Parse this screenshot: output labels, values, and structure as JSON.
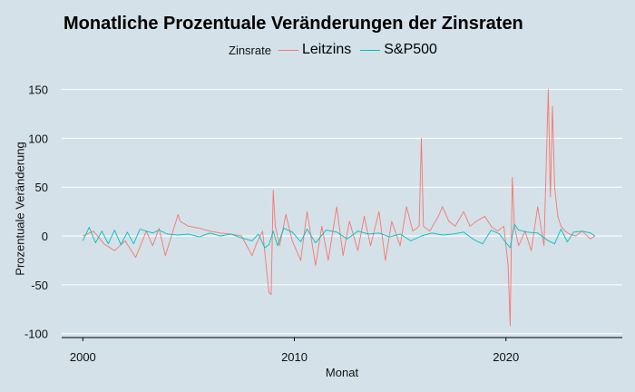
{
  "chart_data": {
    "type": "line",
    "title": "Monatliche Prozentuale Veränderungen der Zinsraten",
    "xlabel": "Monat",
    "ylabel": "Prozentuale Veränderung",
    "legend_title": "Zinsrate",
    "legend_position": "top",
    "xlim": [
      1999.0,
      2025.5
    ],
    "ylim": [
      -104,
      158
    ],
    "x_ticks": [
      2000,
      2010,
      2020
    ],
    "y_ticks": [
      150,
      100,
      50,
      0,
      -50,
      -100
    ],
    "grid": "horizontal",
    "series": [
      {
        "name": "Leitzins",
        "color": "#f8766d",
        "x": [
          2000.0,
          2000.5,
          2001.0,
          2001.5,
          2002.0,
          2002.5,
          2003.0,
          2003.3,
          2003.6,
          2003.9,
          2004.5,
          2004.6,
          2005.0,
          2005.5,
          2006.0,
          2006.5,
          2007.0,
          2007.5,
          2008.0,
          2008.2,
          2008.5,
          2008.8,
          2008.9,
          2009.0,
          2009.1,
          2009.3,
          2009.6,
          2009.9,
          2010.3,
          2010.6,
          2011.0,
          2011.3,
          2011.6,
          2012.0,
          2012.3,
          2012.6,
          2013.0,
          2013.3,
          2013.6,
          2014.0,
          2014.3,
          2014.6,
          2015.0,
          2015.3,
          2015.6,
          2015.9,
          2016.0,
          2016.1,
          2016.4,
          2016.8,
          2017.0,
          2017.3,
          2017.6,
          2018.0,
          2018.3,
          2018.6,
          2019.0,
          2019.3,
          2019.6,
          2019.9,
          2020.1,
          2020.2,
          2020.3,
          2020.4,
          2020.6,
          2020.9,
          2021.2,
          2021.5,
          2021.8,
          2022.0,
          2022.1,
          2022.2,
          2022.3,
          2022.45,
          2022.6,
          2022.8,
          2023.0,
          2023.3,
          2023.6,
          2024.0,
          2024.2
        ],
        "values": [
          0,
          5,
          -8,
          -15,
          -5,
          -22,
          5,
          -10,
          8,
          -20,
          22,
          15,
          10,
          8,
          5,
          3,
          2,
          0,
          -20,
          -8,
          5,
          -58,
          -60,
          47,
          10,
          -10,
          22,
          -5,
          -25,
          25,
          -30,
          10,
          -25,
          30,
          -20,
          15,
          -15,
          20,
          -10,
          25,
          -25,
          15,
          -10,
          30,
          5,
          10,
          100,
          10,
          5,
          20,
          30,
          15,
          10,
          25,
          10,
          15,
          20,
          10,
          5,
          10,
          -30,
          -92,
          60,
          10,
          -10,
          5,
          -15,
          30,
          -10,
          150,
          40,
          133,
          50,
          20,
          10,
          5,
          2,
          0,
          5,
          -3,
          0
        ]
      },
      {
        "name": "S&P500",
        "color": "#00bfc4",
        "x": [
          2000.0,
          2000.3,
          2000.6,
          2000.9,
          2001.2,
          2001.5,
          2001.8,
          2002.1,
          2002.4,
          2002.7,
          2003.0,
          2003.3,
          2003.6,
          2004.0,
          2004.5,
          2005.0,
          2005.5,
          2006.0,
          2006.5,
          2007.0,
          2007.5,
          2008.0,
          2008.3,
          2008.6,
          2008.8,
          2009.0,
          2009.2,
          2009.5,
          2009.9,
          2010.3,
          2010.6,
          2011.0,
          2011.5,
          2012.0,
          2012.5,
          2013.0,
          2013.5,
          2014.0,
          2014.5,
          2015.0,
          2015.5,
          2016.0,
          2016.5,
          2017.0,
          2017.5,
          2018.0,
          2018.5,
          2018.9,
          2019.3,
          2019.7,
          2020.0,
          2020.2,
          2020.4,
          2020.6,
          2021.0,
          2021.5,
          2022.0,
          2022.3,
          2022.6,
          2022.9,
          2023.2,
          2023.6,
          2024.0,
          2024.2
        ],
        "values": [
          -5,
          9,
          -7,
          5,
          -8,
          6,
          -9,
          4,
          -8,
          7,
          5,
          3,
          6,
          2,
          1,
          2,
          -1,
          3,
          0,
          2,
          -2,
          -5,
          2,
          -12,
          -9,
          5,
          -10,
          8,
          4,
          -6,
          7,
          -7,
          6,
          4,
          -3,
          5,
          2,
          3,
          -1,
          2,
          -5,
          0,
          3,
          1,
          2,
          4,
          -4,
          -8,
          6,
          2,
          -7,
          -12,
          12,
          6,
          4,
          3,
          -5,
          -8,
          7,
          -6,
          4,
          5,
          3,
          0
        ]
      }
    ]
  }
}
